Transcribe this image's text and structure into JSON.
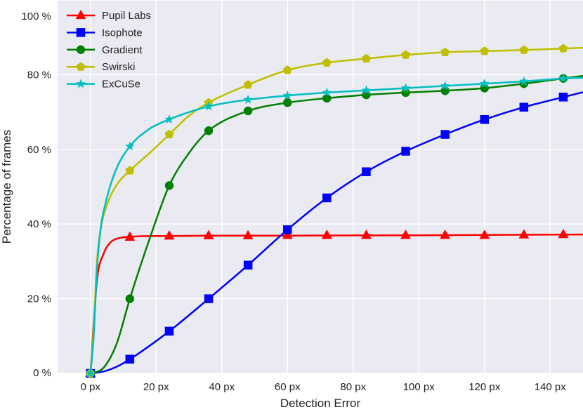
{
  "chart_data": {
    "type": "line",
    "title": "",
    "xlabel": "Detection Error",
    "ylabel": "Percentage of frames",
    "xlim": [
      -10,
      150
    ],
    "ylim": [
      0,
      100
    ],
    "x_ticks": [
      0,
      20,
      40,
      60,
      80,
      100,
      120,
      140
    ],
    "x_tick_labels": [
      "0 px",
      "20 px",
      "40 px",
      "60 px",
      "80 px",
      "100 px",
      "120 px",
      "140 px"
    ],
    "y_ticks": [
      0,
      20,
      40,
      60,
      80,
      100
    ],
    "y_tick_labels": [
      "0 %",
      "20 %",
      "40 %",
      "60 %",
      "80 %",
      "100 %"
    ],
    "grid": true,
    "background": "#eaeaf2",
    "legend_position": "top-left",
    "marker_x": [
      0,
      12,
      24,
      36,
      48,
      60,
      72,
      84,
      96,
      108,
      120,
      132,
      144
    ],
    "series": [
      {
        "name": "Pupil Labs",
        "color": "#ff0000",
        "marker": "triangle",
        "curve_x": [
          0,
          2,
          4,
          6,
          9,
          12,
          20,
          24,
          36,
          60,
          100,
          150
        ],
        "curve_y": [
          0,
          25,
          32,
          35,
          36.3,
          36.6,
          36.8,
          36.8,
          36.9,
          36.9,
          37,
          37.2
        ],
        "marker_y": [
          0,
          36.5,
          36.8,
          36.9,
          36.9,
          37.0,
          37.0,
          37.0,
          37.0,
          37.0,
          37.0,
          37.1,
          37.2
        ]
      },
      {
        "name": "Isophote",
        "color": "#0000ff",
        "marker": "square",
        "curve_x": [
          0,
          4,
          8,
          12,
          24,
          36,
          48,
          60,
          72,
          84,
          96,
          108,
          120,
          132,
          144,
          150
        ],
        "curve_y": [
          0,
          0.5,
          1.8,
          3.8,
          11.3,
          20,
          29,
          38.5,
          47,
          54,
          59.5,
          64,
          68,
          71.3,
          74,
          75.3
        ],
        "marker_y": [
          0,
          3.8,
          11.3,
          20,
          29,
          38.5,
          47,
          54,
          59.5,
          64,
          68,
          71.3,
          74
        ]
      },
      {
        "name": "Gradient",
        "color": "#008000",
        "marker": "circle",
        "curve_x": [
          0,
          4,
          8,
          12,
          18,
          24,
          30,
          36,
          48,
          60,
          72,
          84,
          96,
          108,
          120,
          132,
          144,
          150
        ],
        "curve_y": [
          0,
          1.5,
          8,
          20,
          36,
          50.3,
          59,
          65,
          70.3,
          72.5,
          73.7,
          74.6,
          75.2,
          75.7,
          76.4,
          77.6,
          79,
          79.7
        ],
        "marker_y": [
          0,
          20,
          50.3,
          65,
          70.3,
          72.5,
          73.7,
          74.6,
          75.2,
          75.7,
          76.4,
          77.6,
          79
        ]
      },
      {
        "name": "Swirski",
        "color": "#bfbf00",
        "marker": "pentagon",
        "curve_x": [
          0,
          1,
          2,
          3,
          5,
          8,
          12,
          18,
          24,
          30,
          36,
          48,
          60,
          72,
          84,
          96,
          108,
          120,
          132,
          144,
          150
        ],
        "curve_y": [
          0,
          12,
          30,
          38,
          45,
          50.5,
          54.3,
          59,
          64,
          69,
          72.5,
          77.3,
          81.2,
          83.2,
          84.3,
          85.3,
          86,
          86.3,
          86.6,
          87,
          87.2
        ],
        "marker_y": [
          0,
          54.3,
          64,
          72.5,
          77.3,
          81.2,
          83.2,
          84.3,
          85.3,
          86,
          86.3,
          86.6,
          87
        ]
      },
      {
        "name": "ExCuSe",
        "color": "#00bfbf",
        "marker": "star",
        "curve_x": [
          0,
          1,
          2,
          3,
          5,
          8,
          12,
          18,
          24,
          36,
          48,
          60,
          72,
          84,
          96,
          108,
          120,
          132,
          144,
          150
        ],
        "curve_y": [
          0,
          10,
          28,
          38,
          47,
          55,
          60.8,
          65.5,
          68,
          71.5,
          73.3,
          74.4,
          75.2,
          75.8,
          76.4,
          77,
          77.6,
          78.2,
          79,
          79.2
        ],
        "marker_y": [
          0,
          60.8,
          68,
          71.5,
          73.3,
          74.4,
          75.2,
          75.8,
          76.4,
          77,
          77.6,
          78.2,
          79
        ]
      }
    ]
  }
}
